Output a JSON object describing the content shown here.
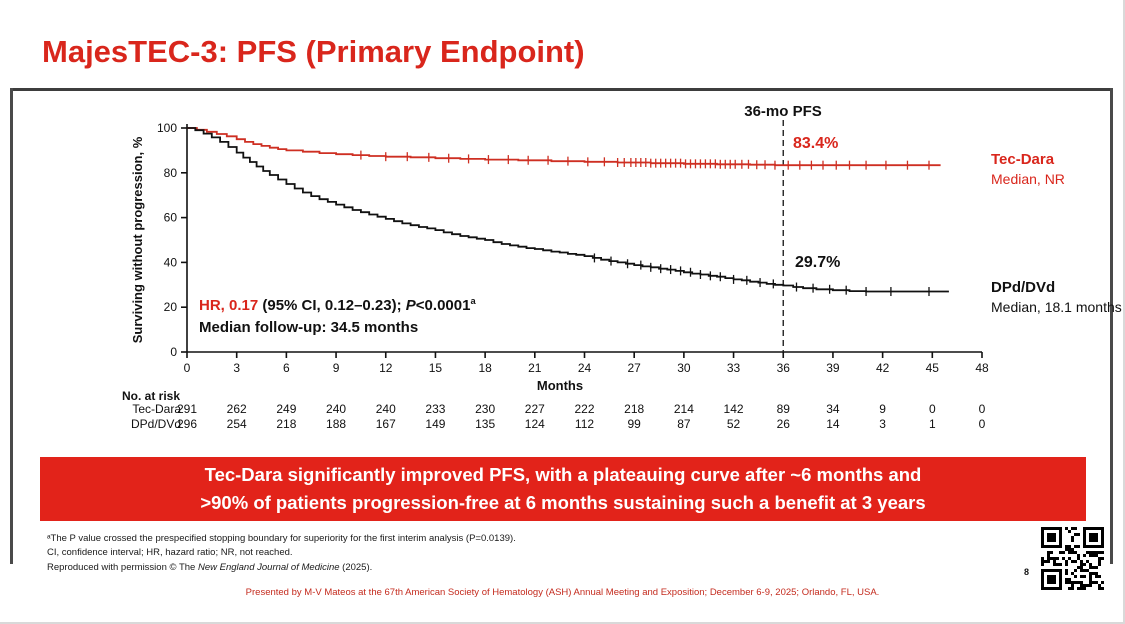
{
  "title": "MajesTEC-3: PFS (Primary Endpoint)",
  "page_number": "8",
  "colors": {
    "accent_red": "#D9261C",
    "banner_red": "#E2231A",
    "curve_red": "#CE2F22",
    "curve_black": "#111111"
  },
  "annotations": {
    "hr": "HR, 0.17",
    "ci": " (95% CI, 0.12–0.23); ",
    "p": "P",
    "p_value": "<0.0001",
    "p_sup": "a",
    "followup": "Median follow-up: 34.5 months"
  },
  "banner": {
    "line1": "Tec-Dara significantly improved PFS, with a plateauing curve after ~6 months and",
    "line2": ">90% of patients progression-free at 6 months sustaining such a benefit at 3 years"
  },
  "footnotes": {
    "line1": "ᵃThe P value crossed the prespecified stopping boundary for superiority for the first interim analysis (P=0.0139).",
    "line2": "CI, confidence interval; HR, hazard ratio; NR, not reached.",
    "line3_pre": "Reproduced with permission © The ",
    "line3_italic": "New England Journal of Medicine",
    "line3_post": " (2025)."
  },
  "footer": "Presented by M-V Mateos at the 67th American Society of Hematology (ASH) Annual Meeting and Exposition; December 6-9, 2025; Orlando, FL, USA.",
  "chart_data": {
    "type": "line",
    "subtype": "kaplan-meier-step",
    "title": "",
    "xlabel": "Months",
    "ylabel": "Surviving without progression, %",
    "xlim": [
      0,
      48
    ],
    "ylim": [
      0,
      100
    ],
    "xticks": [
      0,
      3,
      6,
      9,
      12,
      15,
      18,
      21,
      24,
      27,
      30,
      33,
      36,
      39,
      42,
      45,
      48
    ],
    "yticks": [
      0,
      20,
      40,
      60,
      80,
      100
    ],
    "grid": false,
    "legend_position": "right-of-curves",
    "reference_line": {
      "x": 36,
      "label": "36-mo PFS",
      "style": "dashed"
    },
    "series": [
      {
        "name": "Tec-Dara",
        "color": "#CE2F22",
        "median_label": "Median, NR",
        "pfs_36mo_label": "83.4%",
        "pfs_36mo_value": 83.4,
        "steps": [
          [
            0,
            100
          ],
          [
            0.6,
            99.2
          ],
          [
            1.2,
            98.3
          ],
          [
            1.8,
            97.3
          ],
          [
            2.4,
            96.3
          ],
          [
            3,
            95
          ],
          [
            3.5,
            93.8
          ],
          [
            4,
            92.8
          ],
          [
            4.5,
            92
          ],
          [
            5,
            91.2
          ],
          [
            5.5,
            90.6
          ],
          [
            6,
            90
          ],
          [
            7,
            89.4
          ],
          [
            8,
            88.8
          ],
          [
            9,
            88.3
          ],
          [
            10,
            87.9
          ],
          [
            11,
            87.5
          ],
          [
            12,
            87.2
          ],
          [
            13.5,
            86.9
          ],
          [
            15,
            86.5
          ],
          [
            16.5,
            86.2
          ],
          [
            18,
            85.9
          ],
          [
            20,
            85.6
          ],
          [
            22,
            85.2
          ],
          [
            24,
            84.9
          ],
          [
            26,
            84.6
          ],
          [
            28,
            84.3
          ],
          [
            30,
            84
          ],
          [
            32,
            83.8
          ],
          [
            34,
            83.6
          ],
          [
            35.5,
            83.4
          ],
          [
            45.5,
            83.4
          ]
        ],
        "censor_x": [
          10.5,
          12,
          13.3,
          14.6,
          15.8,
          17,
          18.2,
          19.4,
          20.6,
          21.8,
          23,
          24.2,
          25.2,
          26,
          26.4,
          26.8,
          27.1,
          27.4,
          27.7,
          28,
          28.3,
          28.6,
          28.9,
          29.2,
          29.5,
          29.8,
          30.1,
          30.4,
          30.7,
          31,
          31.3,
          31.6,
          31.9,
          32.2,
          32.5,
          32.8,
          33.1,
          33.5,
          33.9,
          34.4,
          34.9,
          35.5,
          36.3,
          37,
          37.7,
          38.4,
          39.2,
          40,
          41,
          42.2,
          43.5,
          44.8
        ]
      },
      {
        "name": "DPd/DVd",
        "color": "#111111",
        "median_label": "Median, 18.1 months",
        "pfs_36mo_label": "29.7%",
        "pfs_36mo_value": 29.7,
        "steps": [
          [
            0,
            100
          ],
          [
            0.5,
            99
          ],
          [
            1,
            97.5
          ],
          [
            1.5,
            95.8
          ],
          [
            2,
            93.8
          ],
          [
            2.5,
            91.5
          ],
          [
            3,
            89
          ],
          [
            3.4,
            86.8
          ],
          [
            3.8,
            84.8
          ],
          [
            4.2,
            82.8
          ],
          [
            4.6,
            80.8
          ],
          [
            5,
            79
          ],
          [
            5.5,
            77
          ],
          [
            6,
            75
          ],
          [
            6.5,
            73
          ],
          [
            7,
            71.2
          ],
          [
            7.5,
            69.6
          ],
          [
            8,
            68.2
          ],
          [
            8.5,
            67
          ],
          [
            9,
            65.8
          ],
          [
            9.5,
            64.6
          ],
          [
            10,
            63.4
          ],
          [
            10.5,
            62.4
          ],
          [
            11,
            61.4
          ],
          [
            11.5,
            60.4
          ],
          [
            12,
            59.4
          ],
          [
            12.5,
            58.4
          ],
          [
            13,
            57.4
          ],
          [
            13.5,
            56.6
          ],
          [
            14,
            55.8
          ],
          [
            14.5,
            55.2
          ],
          [
            15,
            54.4
          ],
          [
            15.5,
            53.4
          ],
          [
            16,
            52.6
          ],
          [
            16.5,
            51.8
          ],
          [
            17,
            51.2
          ],
          [
            17.5,
            50.6
          ],
          [
            18,
            50
          ],
          [
            18.5,
            49
          ],
          [
            19,
            48.2
          ],
          [
            19.5,
            47.6
          ],
          [
            20,
            47
          ],
          [
            20.5,
            46.4
          ],
          [
            21,
            46
          ],
          [
            21.5,
            45.4
          ],
          [
            22,
            44.8
          ],
          [
            22.5,
            44.4
          ],
          [
            23,
            43.8
          ],
          [
            23.5,
            43.4
          ],
          [
            24,
            42.8
          ],
          [
            24.5,
            42
          ],
          [
            25,
            41.2
          ],
          [
            25.5,
            40.6
          ],
          [
            26,
            40
          ],
          [
            26.5,
            39.4
          ],
          [
            27,
            38.8
          ],
          [
            27.5,
            38.2
          ],
          [
            28,
            37.8
          ],
          [
            28.5,
            37.2
          ],
          [
            29,
            36.8
          ],
          [
            29.5,
            36.2
          ],
          [
            30,
            35.6
          ],
          [
            30.5,
            35
          ],
          [
            31,
            34.6
          ],
          [
            31.5,
            34
          ],
          [
            32,
            33.6
          ],
          [
            32.5,
            33
          ],
          [
            33,
            32.4
          ],
          [
            33.5,
            32
          ],
          [
            34,
            31.4
          ],
          [
            34.5,
            31
          ],
          [
            35,
            30.4
          ],
          [
            35.5,
            30
          ],
          [
            36,
            29.7
          ],
          [
            36.6,
            29
          ],
          [
            37.2,
            28.5
          ],
          [
            38,
            28
          ],
          [
            39,
            27.6
          ],
          [
            40,
            27.2
          ],
          [
            41,
            27
          ],
          [
            46,
            27
          ]
        ],
        "censor_x": [
          24.6,
          25.6,
          26.6,
          27.4,
          28,
          28.6,
          29.2,
          29.8,
          30.4,
          31,
          31.6,
          32.2,
          33,
          33.8,
          34.6,
          35.4,
          36.8,
          37.8,
          38.8,
          39.8,
          41,
          42.5,
          44.8
        ]
      }
    ],
    "risk_table": {
      "title": "No. at risk",
      "x": [
        0,
        3,
        6,
        9,
        12,
        15,
        18,
        21,
        24,
        27,
        30,
        33,
        36,
        39,
        42,
        45,
        48
      ],
      "rows": [
        {
          "label": "Tec-Dara",
          "values": [
            291,
            262,
            249,
            240,
            240,
            233,
            230,
            227,
            222,
            218,
            214,
            142,
            89,
            34,
            9,
            0,
            0
          ]
        },
        {
          "label": "DPd/DVd",
          "values": [
            296,
            254,
            218,
            188,
            167,
            149,
            135,
            124,
            112,
            99,
            87,
            52,
            26,
            14,
            3,
            1,
            0
          ]
        }
      ]
    }
  }
}
